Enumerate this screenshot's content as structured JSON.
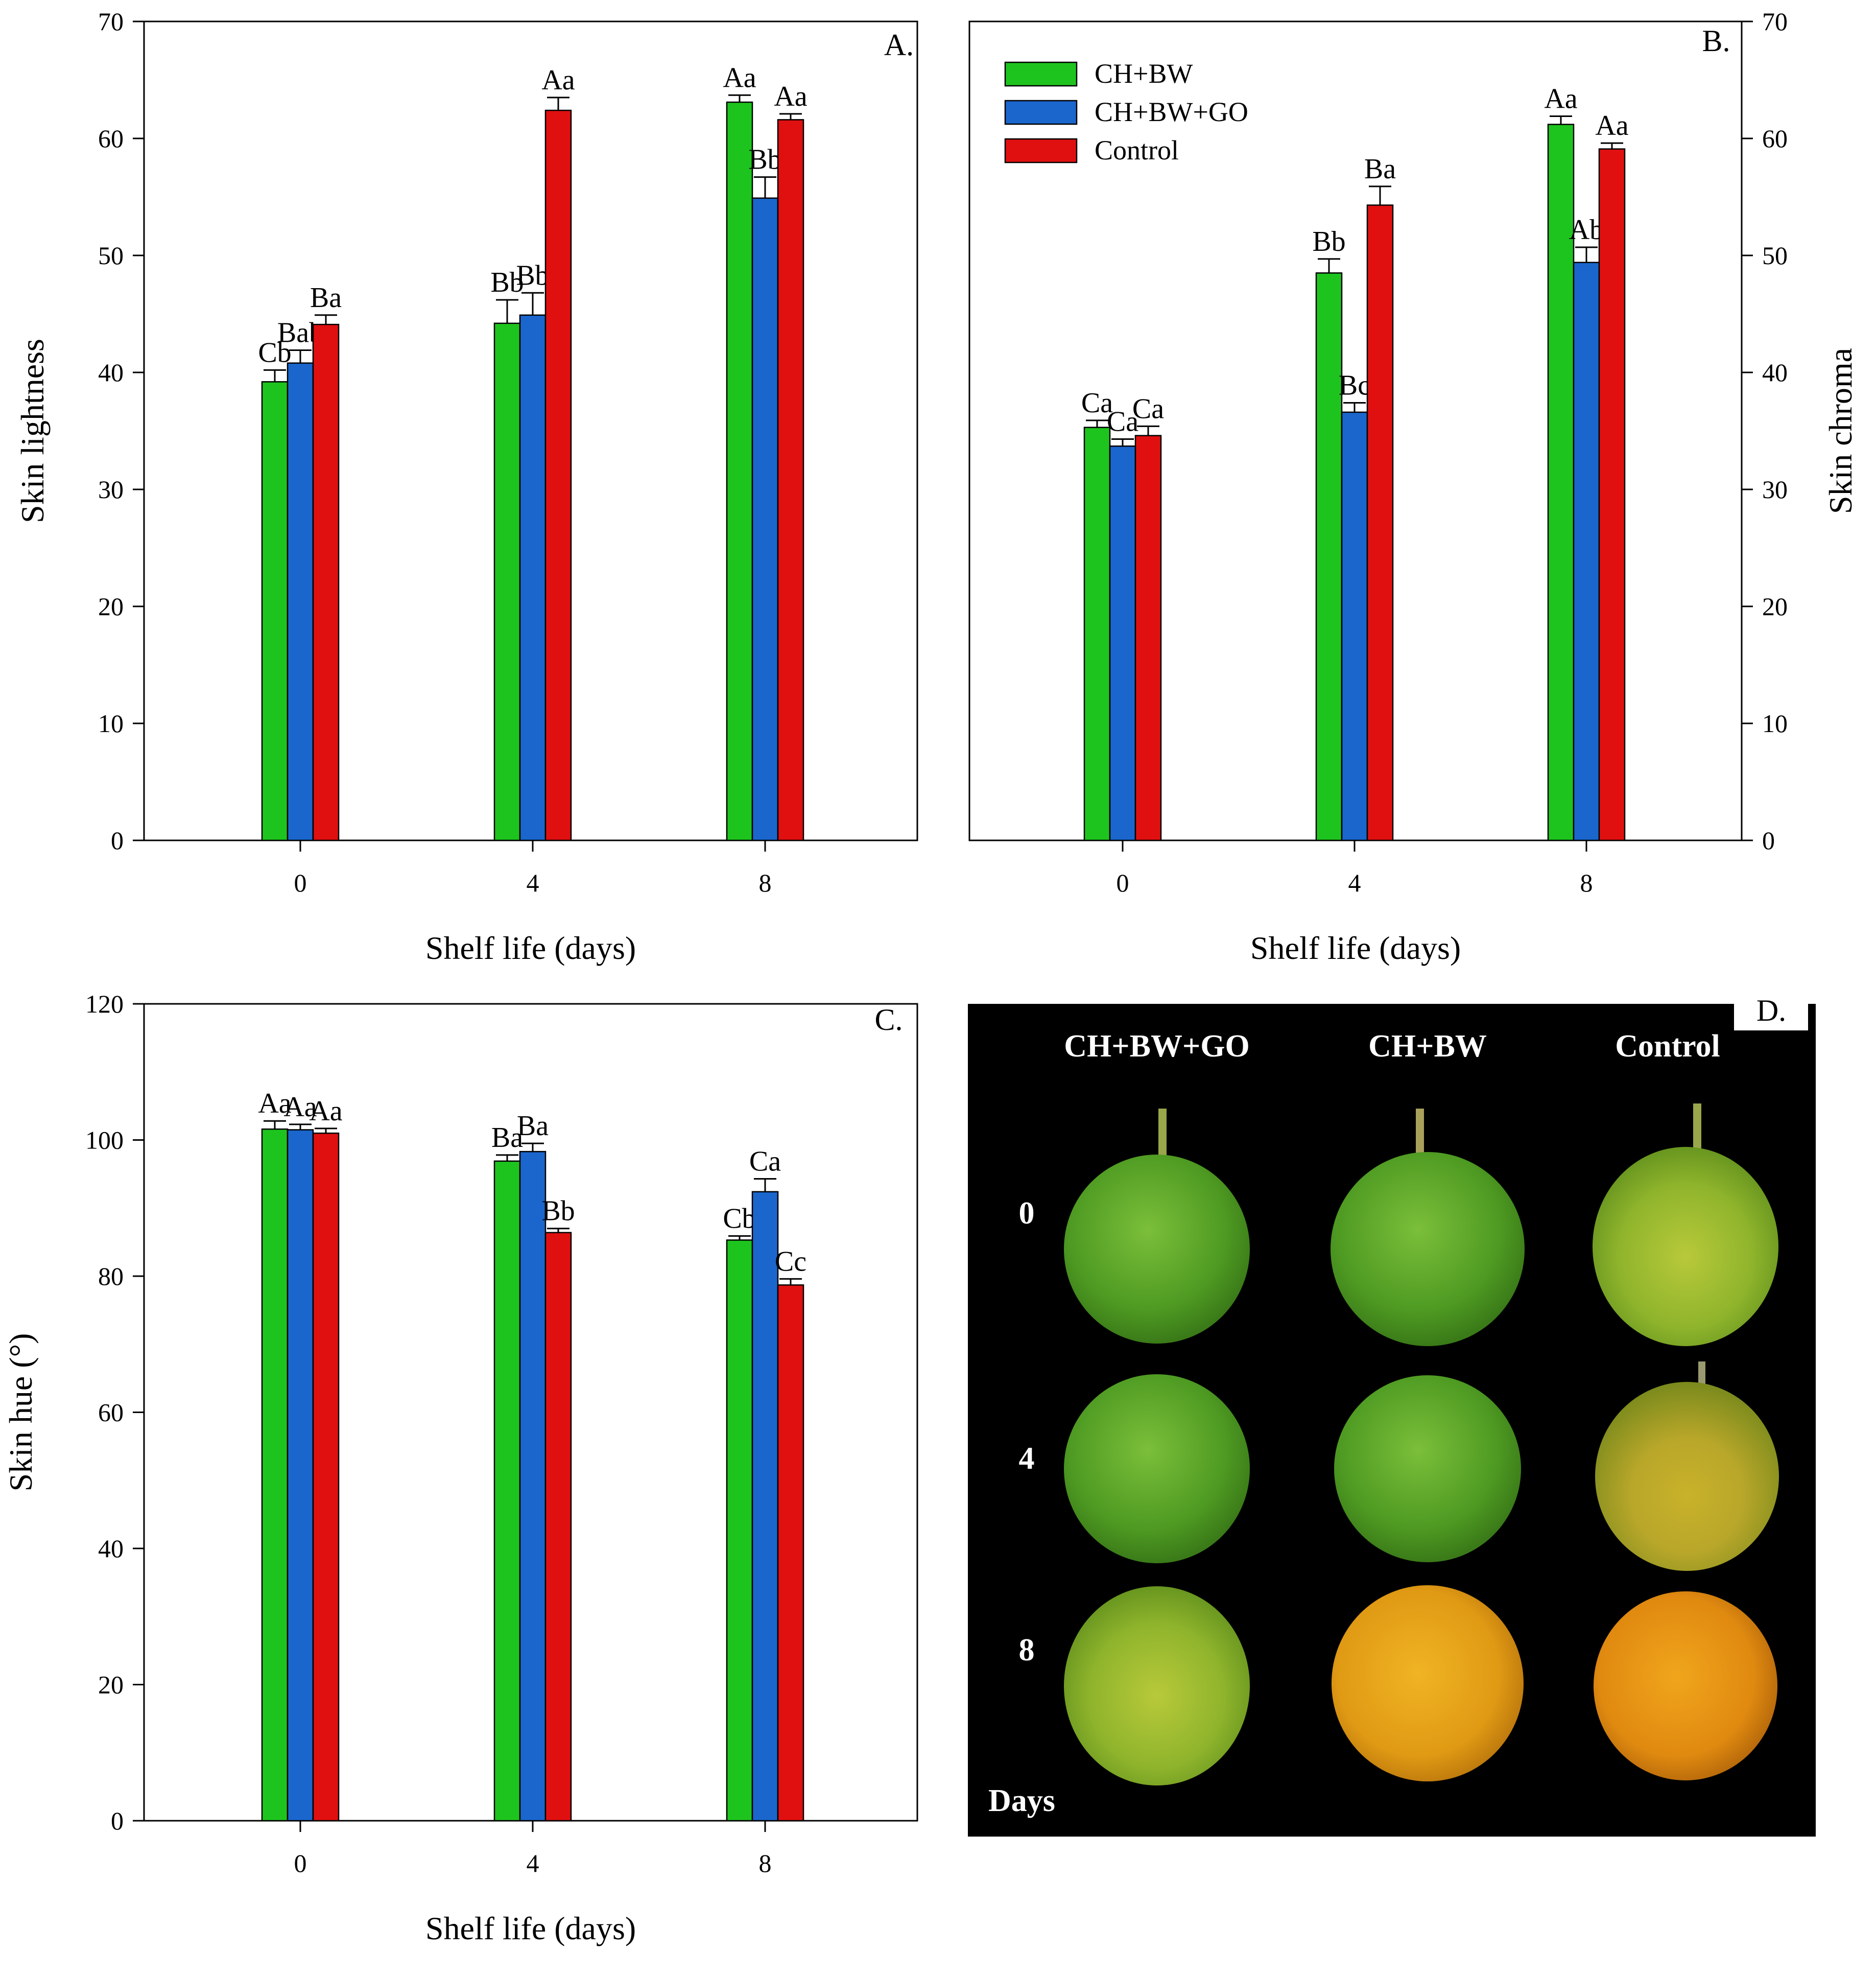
{
  "series_legend": [
    {
      "name": "CH+BW",
      "color": "#1ec41e"
    },
    {
      "name": "CH+BW+GO",
      "color": "#1a66cc"
    },
    {
      "name": "Control",
      "color": "#e01010"
    }
  ],
  "chart_data": [
    {
      "type": "bar",
      "panel": "A.",
      "title": "",
      "xlabel": "Shelf life (days)",
      "ylabel": "Skin lightness",
      "categories": [
        "0",
        "4",
        "8"
      ],
      "ylim": [
        0,
        70
      ],
      "yticks": [
        "0",
        "10",
        "20",
        "30",
        "40",
        "50",
        "60",
        "70"
      ],
      "series": [
        {
          "name": "CH+BW",
          "values": [
            39.2,
            44.2,
            63.1
          ],
          "errors": [
            1.0,
            2.0,
            0.6
          ],
          "labels": [
            "Cb",
            "Bb",
            "Aa"
          ]
        },
        {
          "name": "CH+BW+GO",
          "values": [
            40.8,
            44.9,
            54.9
          ],
          "errors": [
            1.1,
            1.9,
            1.8
          ],
          "labels": [
            "Bab",
            "Bb",
            "Bb"
          ]
        },
        {
          "name": "Control",
          "values": [
            44.1,
            62.4,
            61.6
          ],
          "errors": [
            0.8,
            1.1,
            0.5
          ],
          "labels": [
            "Ba",
            "Aa",
            "Aa"
          ]
        }
      ]
    },
    {
      "type": "bar",
      "panel": "B.",
      "title": "",
      "xlabel": "Shelf life (days)",
      "ylabel": "Skin chroma",
      "categories": [
        "0",
        "4",
        "8"
      ],
      "ylim": [
        0,
        70
      ],
      "yticks": [
        "0",
        "10",
        "20",
        "30",
        "40",
        "50",
        "60",
        "70"
      ],
      "legend": {
        "position": "top-left",
        "entries": [
          "CH+BW",
          "CH+BW+GO",
          "Control"
        ]
      },
      "series": [
        {
          "name": "CH+BW",
          "values": [
            35.3,
            48.5,
            61.2
          ],
          "errors": [
            0.6,
            1.2,
            0.7
          ],
          "labels": [
            "Ca",
            "Bb",
            "Aa"
          ]
        },
        {
          "name": "CH+BW+GO",
          "values": [
            33.7,
            36.6,
            49.4
          ],
          "errors": [
            0.6,
            0.8,
            1.3
          ],
          "labels": [
            "Ca",
            "Bc",
            "Ab"
          ]
        },
        {
          "name": "Control",
          "values": [
            34.6,
            54.3,
            59.1
          ],
          "errors": [
            0.8,
            1.6,
            0.5
          ],
          "labels": [
            "Ca",
            "Ba",
            "Aa"
          ]
        }
      ]
    },
    {
      "type": "bar",
      "panel": "C.",
      "title": "",
      "xlabel": "Shelf life (days)",
      "ylabel": "Skin hue (°)",
      "categories": [
        "0",
        "4",
        "8"
      ],
      "ylim": [
        0,
        120
      ],
      "yticks": [
        "0",
        "20",
        "40",
        "60",
        "80",
        "100",
        "120"
      ],
      "series": [
        {
          "name": "CH+BW",
          "values": [
            101.6,
            96.9,
            85.3
          ],
          "errors": [
            1.2,
            0.9,
            0.6
          ],
          "labels": [
            "Aa",
            "Ba",
            "Cb"
          ]
        },
        {
          "name": "CH+BW+GO",
          "values": [
            101.5,
            98.3,
            92.4
          ],
          "errors": [
            0.8,
            1.2,
            1.9
          ],
          "labels": [
            "Aa",
            "Ba",
            "Ca"
          ]
        },
        {
          "name": "Control",
          "values": [
            101.0,
            86.4,
            78.7
          ],
          "errors": [
            0.7,
            0.6,
            0.9
          ],
          "labels": [
            "Aa",
            "Bb",
            "Cc"
          ]
        }
      ]
    }
  ],
  "photo_panel": {
    "panel": "D.",
    "columns": [
      "CH+BW+GO",
      "CH+BW",
      "Control"
    ],
    "rows": [
      "0",
      "4",
      "8"
    ],
    "axis_label": "Days"
  }
}
